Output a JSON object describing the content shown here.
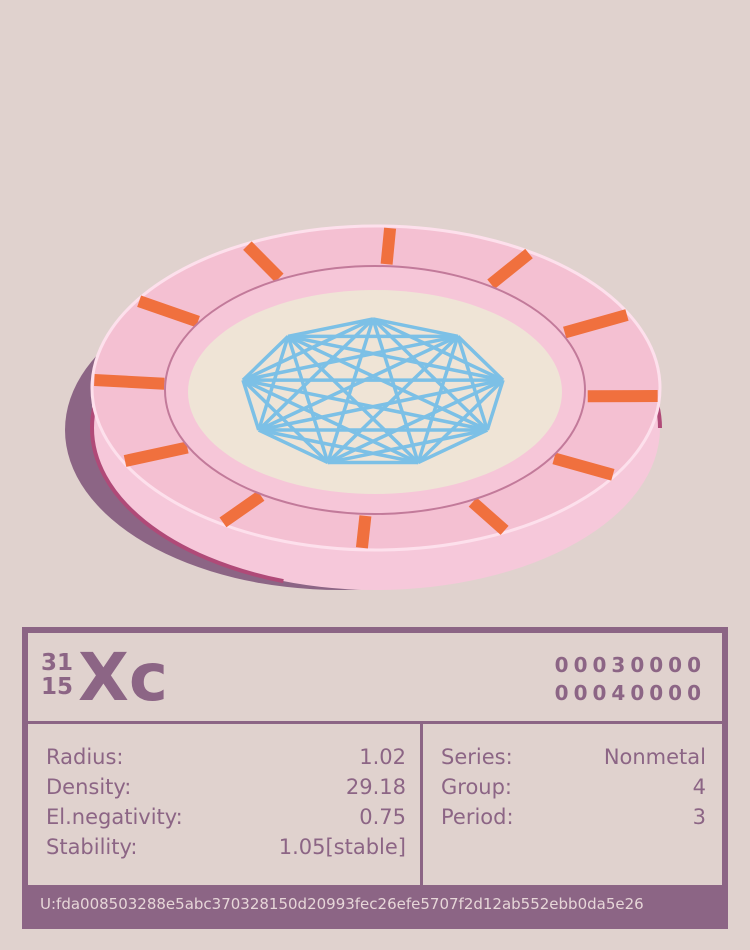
{
  "element": {
    "mass_number": "31",
    "atomic_number": "15",
    "symbol": "Xc",
    "code_top": "00030000",
    "code_bottom": "00040000"
  },
  "properties_left": [
    {
      "label": "Radius:",
      "value": "1.02"
    },
    {
      "label": "Density:",
      "value": "29.18"
    },
    {
      "label": "El.negativity:",
      "value": "0.75"
    },
    {
      "label": "Stability:",
      "value": "1.05[stable]"
    }
  ],
  "properties_right": [
    {
      "label": "Series:",
      "value": "Nonmetal"
    },
    {
      "label": "Group:",
      "value": "4"
    },
    {
      "label": "Period:",
      "value": "3"
    }
  ],
  "footer": {
    "uid": "U:fda008503288e5abc370328150d20993fec26efe5707f2d12ab552ebb0da5e26"
  },
  "colors": {
    "accent": "#8c6585",
    "coin_face": "#f4c4d6",
    "coin_center": "#efe4d6",
    "star": "#7cc0e6",
    "ticks": "#f0703e"
  }
}
